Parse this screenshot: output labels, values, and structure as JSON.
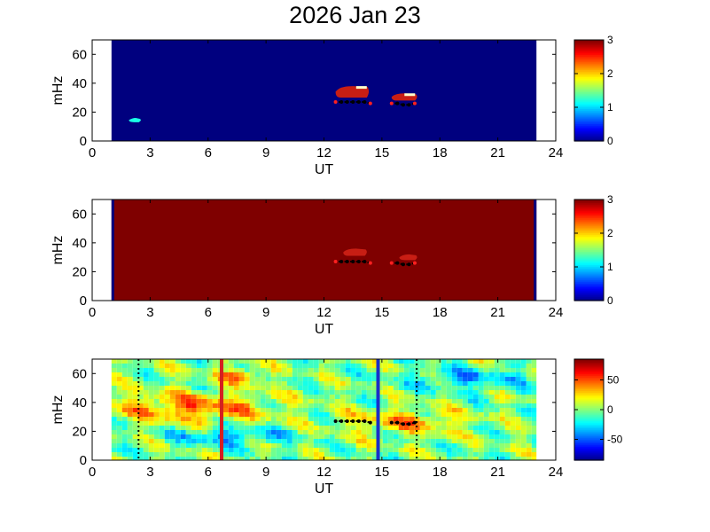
{
  "title": "2026 Jan 23",
  "colors": {
    "background_dark_blue": "#00007f",
    "background_dark_red": "#7f0000",
    "pulsation_red": "#c81e14",
    "marker_black": "#000000",
    "line_red": "#d42020",
    "line_blue": "#1a2fc8"
  },
  "chart_data": [
    {
      "type": "heatmap",
      "panel": "top",
      "xlabel": "UT",
      "ylabel": "mHz",
      "xlim": [
        0,
        24
      ],
      "ylim": [
        0,
        70
      ],
      "xticks": [
        0,
        3,
        6,
        9,
        12,
        15,
        18,
        21,
        24
      ],
      "yticks": [
        0,
        20,
        40,
        60
      ],
      "data_range_ut": [
        1.0,
        23.0
      ],
      "background_value": 0,
      "colorbar": {
        "range": [
          0,
          3
        ],
        "ticks": [
          0,
          1,
          2,
          3
        ]
      },
      "features": [
        {
          "name": "blob-a",
          "ut_start": 12.6,
          "ut_end": 14.4,
          "freq_low": 30,
          "freq_high": 38,
          "value": 3
        },
        {
          "name": "blob-b",
          "ut_start": 15.5,
          "ut_end": 16.9,
          "freq_low": 28,
          "freq_high": 33,
          "value": 3
        },
        {
          "name": "blip",
          "ut_start": 1.9,
          "ut_end": 2.6,
          "freq_low": 13,
          "freq_high": 16,
          "value": 1.2
        }
      ],
      "markers": [
        {
          "ut": 12.6,
          "mHz": 27
        },
        {
          "ut": 12.9,
          "mHz": 27
        },
        {
          "ut": 13.2,
          "mHz": 27
        },
        {
          "ut": 13.5,
          "mHz": 27
        },
        {
          "ut": 13.8,
          "mHz": 27
        },
        {
          "ut": 14.1,
          "mHz": 27
        },
        {
          "ut": 14.4,
          "mHz": 26
        },
        {
          "ut": 15.5,
          "mHz": 26
        },
        {
          "ut": 15.8,
          "mHz": 26
        },
        {
          "ut": 16.1,
          "mHz": 25
        },
        {
          "ut": 16.4,
          "mHz": 25
        },
        {
          "ut": 16.7,
          "mHz": 26
        }
      ]
    },
    {
      "type": "heatmap",
      "panel": "middle",
      "xlabel": "UT",
      "ylabel": "mHz",
      "xlim": [
        0,
        24
      ],
      "ylim": [
        0,
        70
      ],
      "xticks": [
        0,
        3,
        6,
        9,
        12,
        15,
        18,
        21,
        24
      ],
      "yticks": [
        0,
        20,
        40,
        60
      ],
      "data_range_ut": [
        1.0,
        23.0
      ],
      "background_value": 3,
      "colorbar": {
        "range": [
          0,
          3
        ],
        "ticks": [
          0,
          1,
          2,
          3
        ]
      },
      "features": [
        {
          "name": "blob-a",
          "ut_start": 13.0,
          "ut_end": 14.3,
          "freq_low": 31,
          "freq_high": 36,
          "value": 3
        },
        {
          "name": "blob-b",
          "ut_start": 15.9,
          "ut_end": 16.9,
          "freq_low": 28,
          "freq_high": 32,
          "value": 3
        }
      ],
      "markers": [
        {
          "ut": 12.6,
          "mHz": 27
        },
        {
          "ut": 12.9,
          "mHz": 27
        },
        {
          "ut": 13.2,
          "mHz": 27
        },
        {
          "ut": 13.5,
          "mHz": 27
        },
        {
          "ut": 13.8,
          "mHz": 27
        },
        {
          "ut": 14.1,
          "mHz": 27
        },
        {
          "ut": 14.4,
          "mHz": 26
        },
        {
          "ut": 15.5,
          "mHz": 26
        },
        {
          "ut": 15.8,
          "mHz": 26
        },
        {
          "ut": 16.1,
          "mHz": 25
        },
        {
          "ut": 16.4,
          "mHz": 25
        },
        {
          "ut": 16.7,
          "mHz": 26
        }
      ]
    },
    {
      "type": "heatmap",
      "panel": "bottom",
      "xlabel": "UT",
      "ylabel": "mHz",
      "xlim": [
        0,
        24
      ],
      "ylim": [
        0,
        70
      ],
      "xticks": [
        0,
        3,
        6,
        9,
        12,
        15,
        18,
        21,
        24
      ],
      "yticks": [
        0,
        20,
        40,
        60
      ],
      "data_range_ut": [
        1.0,
        23.0
      ],
      "colorbar": {
        "range": [
          -85,
          85
        ],
        "ticks": [
          -50,
          0,
          50
        ]
      },
      "vertical_lines": [
        {
          "ut": 6.7,
          "color": "red",
          "style": "solid"
        },
        {
          "ut": 14.8,
          "color": "blue",
          "style": "solid"
        },
        {
          "ut": 2.4,
          "color": "black",
          "style": "dotted"
        },
        {
          "ut": 16.8,
          "color": "black",
          "style": "dotted"
        }
      ],
      "markers": [
        {
          "ut": 12.6,
          "mHz": 27
        },
        {
          "ut": 12.9,
          "mHz": 27
        },
        {
          "ut": 13.2,
          "mHz": 27
        },
        {
          "ut": 13.5,
          "mHz": 27
        },
        {
          "ut": 13.8,
          "mHz": 27
        },
        {
          "ut": 14.1,
          "mHz": 27
        },
        {
          "ut": 14.4,
          "mHz": 26
        },
        {
          "ut": 15.5,
          "mHz": 26
        },
        {
          "ut": 15.8,
          "mHz": 26
        },
        {
          "ut": 16.1,
          "mHz": 25
        },
        {
          "ut": 16.4,
          "mHz": 25
        },
        {
          "ut": 16.7,
          "mHz": 26
        }
      ]
    }
  ]
}
